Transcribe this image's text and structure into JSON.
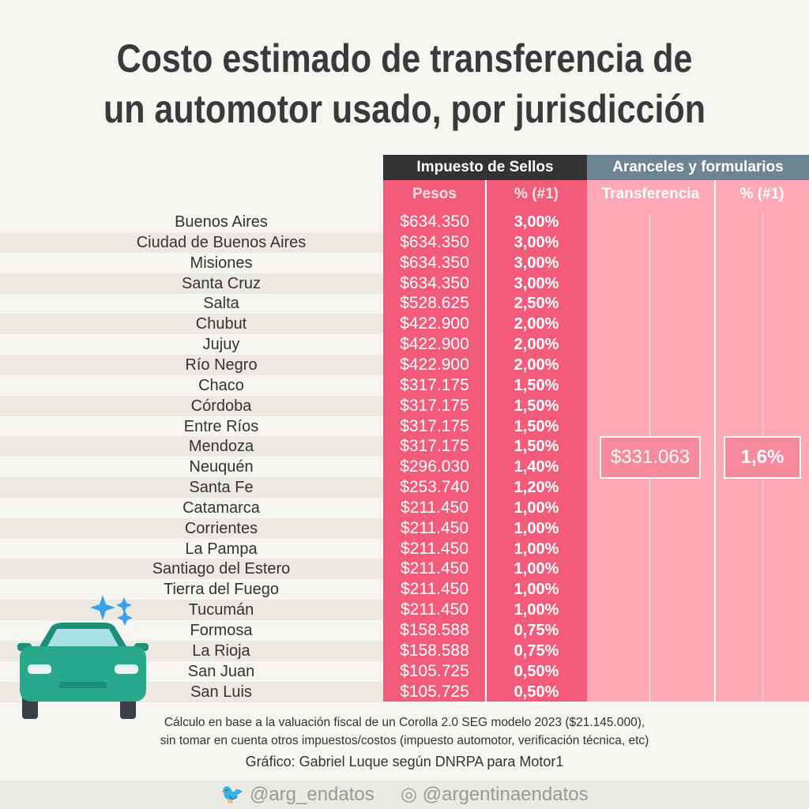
{
  "title_line1": "Costo estimado de transferencia de",
  "title_line2": "un automotor usado, por jurisdicción",
  "header": {
    "group1": "Impuesto de Sellos",
    "group2": "Aranceles y formularios",
    "col1": "Pesos",
    "col2": "% (#1)",
    "col3": "Transferencia",
    "col4": "% (#1)"
  },
  "colors": {
    "dark_header": "#333336",
    "grey_header": "#6d8493",
    "sellos": "#f25c7a",
    "aranceles": "#ffa8b5"
  },
  "chart_data": {
    "type": "table",
    "columns": [
      "Impuesto de Sellos - Pesos",
      "Impuesto de Sellos - % (#1)",
      "Aranceles y formularios - Transferencia",
      "Aranceles y formularios - % (#1)"
    ],
    "rows": [
      [
        "Buenos Aires",
        "$634.350",
        "3,00%"
      ],
      [
        "Ciudad de Buenos Aires",
        "$634.350",
        "3,00%"
      ],
      [
        "Misiones",
        "$634.350",
        "3,00%"
      ],
      [
        "Santa Cruz",
        "$634.350",
        "3,00%"
      ],
      [
        "Salta",
        "$528.625",
        "2,50%"
      ],
      [
        "Chubut",
        "$422.900",
        "2,00%"
      ],
      [
        "Jujuy",
        "$422.900",
        "2,00%"
      ],
      [
        "Río Negro",
        "$422.900",
        "2,00%"
      ],
      [
        "Chaco",
        "$317.175",
        "1,50%"
      ],
      [
        "Córdoba",
        "$317.175",
        "1,50%"
      ],
      [
        "Entre Ríos",
        "$317.175",
        "1,50%"
      ],
      [
        "Mendoza",
        "$317.175",
        "1,50%"
      ],
      [
        "Neuquén",
        "$296.030",
        "1,40%"
      ],
      [
        "Santa Fe",
        "$253.740",
        "1,20%"
      ],
      [
        "Catamarca",
        "$211.450",
        "1,00%"
      ],
      [
        "Corrientes",
        "$211.450",
        "1,00%"
      ],
      [
        "La Pampa",
        "$211.450",
        "1,00%"
      ],
      [
        "Santiago del Estero",
        "$211.450",
        "1,00%"
      ],
      [
        "Tierra del Fuego",
        "$211.450",
        "1,00%"
      ],
      [
        "Tucumán",
        "$211.450",
        "1,00%"
      ],
      [
        "Formosa",
        "$158.588",
        "0,75%"
      ],
      [
        "La Rioja",
        "$158.588",
        "0,75%"
      ],
      [
        "San Juan",
        "$105.725",
        "0,50%"
      ],
      [
        "San Luis",
        "$105.725",
        "0,50%"
      ]
    ],
    "shared": {
      "transferencia": "$331.063",
      "pct": "1,6%"
    }
  },
  "notes": {
    "line1": "Cálculo en base a la valuación fiscal de un Corolla 2.0 SEG modelo 2023 ($21.145.000),",
    "line2": "sin tomar en cuenta otros impuestos/costos (impuesto automotor, verificación técnica, etc)",
    "credit": "Gráfico: Gabriel Luque según DNRPA para Motor1"
  },
  "footer": {
    "twitter": "@arg_endatos",
    "instagram": "@argentinaendatos"
  }
}
